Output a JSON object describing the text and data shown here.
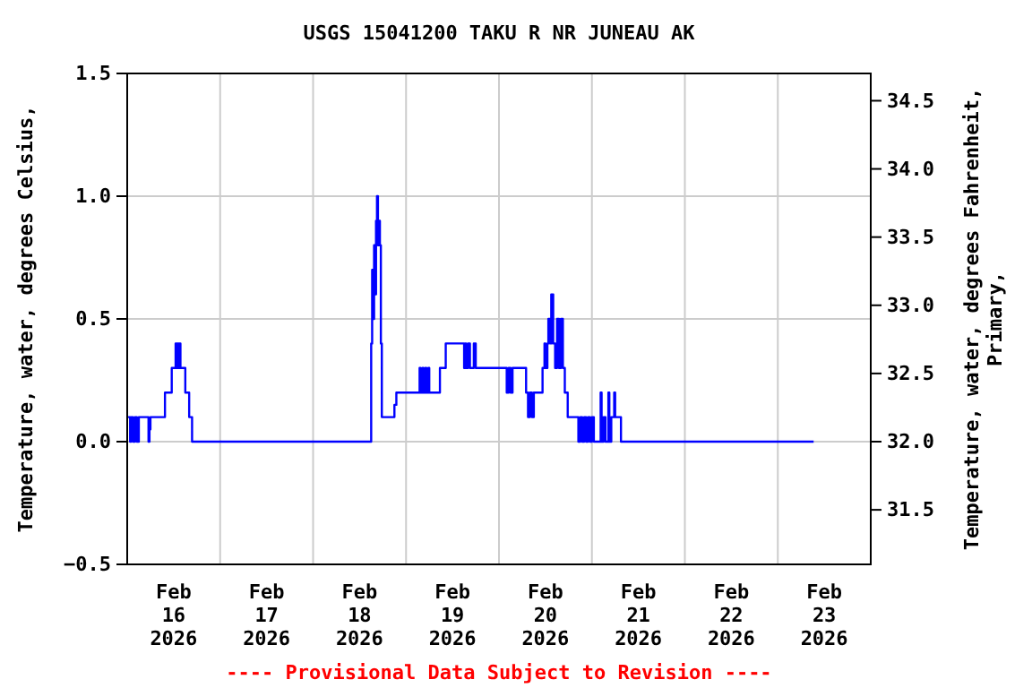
{
  "chart_data": {
    "type": "step",
    "title": "USGS 15041200 TAKU R NR JUNEAU AK",
    "ylabel": "Temperature, water, degrees Celsius,",
    "y2label": "Temperature, water, degrees Fahrenheit, Primary,",
    "annotations": [
      "---- Provisional Data Subject to Revision ----"
    ],
    "color": "#0000ff",
    "x": [
      "2026-02-16T00:15",
      "2026-02-16T00:45",
      "2026-02-16T01:00",
      "2026-02-16T01:30",
      "2026-02-16T02:00",
      "2026-02-16T02:30",
      "2026-02-16T03:00",
      "2026-02-16T05:30",
      "2026-02-16T05:45",
      "2026-02-16T06:00",
      "2026-02-16T09:45",
      "2026-02-16T11:30",
      "2026-02-16T12:30",
      "2026-02-16T12:45",
      "2026-02-16T13:00",
      "2026-02-16T13:15",
      "2026-02-16T13:30",
      "2026-02-16T13:45",
      "2026-02-16T15:00",
      "2026-02-16T16:00",
      "2026-02-16T16:45",
      "2026-02-18T15:00",
      "2026-02-18T15:15",
      "2026-02-18T15:30",
      "2026-02-18T15:45",
      "2026-02-18T16:00",
      "2026-02-18T16:15",
      "2026-02-18T16:30",
      "2026-02-18T16:45",
      "2026-02-18T17:00",
      "2026-02-18T17:15",
      "2026-02-18T17:30",
      "2026-02-18T17:45",
      "2026-02-18T21:00",
      "2026-02-18T21:30",
      "2026-02-19T03:30",
      "2026-02-19T03:45",
      "2026-02-19T04:15",
      "2026-02-19T04:30",
      "2026-02-19T05:00",
      "2026-02-19T05:15",
      "2026-02-19T05:45",
      "2026-02-19T06:00",
      "2026-02-19T08:45",
      "2026-02-19T10:15",
      "2026-02-19T15:00",
      "2026-02-19T15:15",
      "2026-02-19T15:30",
      "2026-02-19T16:00",
      "2026-02-19T16:30",
      "2026-02-19T17:30",
      "2026-02-19T18:00",
      "2026-02-20T02:00",
      "2026-02-20T02:30",
      "2026-02-20T03:00",
      "2026-02-20T03:30",
      "2026-02-20T07:00",
      "2026-02-20T07:30",
      "2026-02-20T08:00",
      "2026-02-20T08:30",
      "2026-02-20T09:00",
      "2026-02-20T11:15",
      "2026-02-20T11:45",
      "2026-02-20T12:00",
      "2026-02-20T12:30",
      "2026-02-20T12:45",
      "2026-02-20T13:15",
      "2026-02-20T13:30",
      "2026-02-20T14:00",
      "2026-02-20T14:30",
      "2026-02-20T15:00",
      "2026-02-20T15:30",
      "2026-02-20T16:00",
      "2026-02-20T16:30",
      "2026-02-20T17:00",
      "2026-02-20T17:45",
      "2026-02-20T20:30",
      "2026-02-20T21:00",
      "2026-02-20T21:30",
      "2026-02-20T22:00",
      "2026-02-20T22:30",
      "2026-02-20T23:00",
      "2026-02-20T23:30",
      "2026-02-21T00:00",
      "2026-02-21T00:30",
      "2026-02-21T02:15",
      "2026-02-21T02:30",
      "2026-02-21T03:00",
      "2026-02-21T03:30",
      "2026-02-21T04:15",
      "2026-02-21T04:30",
      "2026-02-21T05:00",
      "2026-02-21T05:45",
      "2026-02-21T06:00",
      "2026-02-21T07:30",
      "2026-02-23T09:15"
    ],
    "values": [
      0.1,
      0.0,
      0.1,
      0.0,
      0.1,
      0.0,
      0.1,
      0.0,
      0.05,
      0.1,
      0.2,
      0.3,
      0.4,
      0.3,
      0.4,
      0.3,
      0.4,
      0.3,
      0.2,
      0.1,
      0.0,
      0.4,
      0.7,
      0.5,
      0.8,
      0.6,
      0.9,
      1.0,
      0.8,
      0.9,
      0.8,
      0.4,
      0.1,
      0.15,
      0.2,
      0.3,
      0.2,
      0.3,
      0.2,
      0.3,
      0.2,
      0.3,
      0.2,
      0.3,
      0.4,
      0.3,
      0.4,
      0.3,
      0.4,
      0.3,
      0.4,
      0.3,
      0.2,
      0.3,
      0.2,
      0.3,
      0.2,
      0.1,
      0.2,
      0.1,
      0.2,
      0.3,
      0.4,
      0.3,
      0.4,
      0.5,
      0.4,
      0.6,
      0.4,
      0.3,
      0.5,
      0.3,
      0.5,
      0.3,
      0.2,
      0.1,
      0.0,
      0.1,
      0.0,
      0.1,
      0.0,
      0.1,
      0.0,
      0.1,
      0.0,
      0.2,
      0.0,
      0.1,
      0.0,
      0.2,
      0.0,
      0.1,
      0.2,
      0.1,
      0.0,
      0.0
    ],
    "xlim": [
      "2026-02-16T00:00",
      "2026-02-24T00:00"
    ],
    "xticks": [
      {
        "value": "2026-02-16T12:00",
        "label": "Feb\n16\n2026"
      },
      {
        "value": "2026-02-17T00:00",
        "label": null
      },
      {
        "value": "2026-02-17T12:00",
        "label": "Feb\n17\n2026"
      },
      {
        "value": "2026-02-18T00:00",
        "label": null
      },
      {
        "value": "2026-02-18T12:00",
        "label": "Feb\n18\n2026"
      },
      {
        "value": "2026-02-19T00:00",
        "label": null
      },
      {
        "value": "2026-02-19T12:00",
        "label": "Feb\n19\n2026"
      },
      {
        "value": "2026-02-20T00:00",
        "label": null
      },
      {
        "value": "2026-02-20T12:00",
        "label": "Feb\n20\n2026"
      },
      {
        "value": "2026-02-21T00:00",
        "label": null
      },
      {
        "value": "2026-02-21T12:00",
        "label": "Feb\n21\n2026"
      },
      {
        "value": "2026-02-22T00:00",
        "label": null
      },
      {
        "value": "2026-02-22T12:00",
        "label": "Feb\n22\n2026"
      },
      {
        "value": "2026-02-23T00:00",
        "label": null
      },
      {
        "value": "2026-02-23T12:00",
        "label": "Feb\n23\n2026"
      }
    ],
    "ylim": [
      -0.5,
      1.5
    ],
    "yticks": [
      {
        "value": -0.5,
        "label": "−0.5"
      },
      {
        "value": 0,
        "label": "0.0"
      },
      {
        "value": 0.5,
        "label": "0.5"
      },
      {
        "value": 1,
        "label": "1.0"
      },
      {
        "value": 1.5,
        "label": "1.5"
      }
    ],
    "y2lim": [
      31.1,
      34.7
    ],
    "y2ticks": [
      31.5,
      {
        "value": 32,
        "label": "32.0"
      },
      32.5,
      {
        "value": 33,
        "label": "33.0"
      },
      33.5,
      {
        "value": 34,
        "label": "34.0"
      },
      34.5
    ],
    "grid": true
  }
}
